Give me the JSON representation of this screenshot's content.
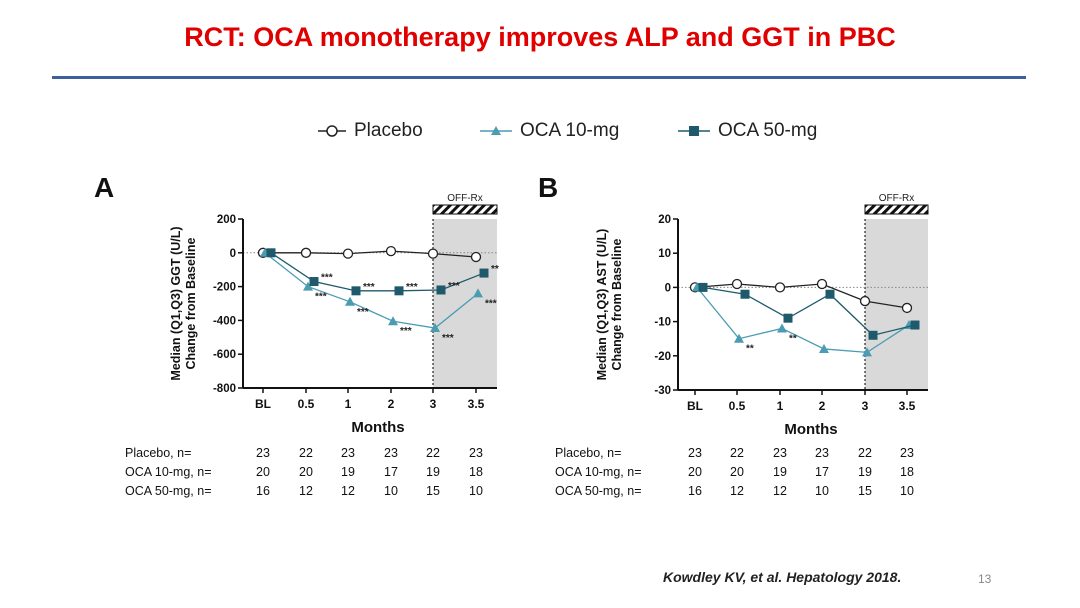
{
  "slide": {
    "title": "RCT: OCA monotherapy improves ALP and GGT in PBC",
    "citation": "Kowdley KV, et al. Hepatology 2018.",
    "page_number": "13"
  },
  "colors": {
    "title": "#e00000",
    "rule": "#3f5f9c",
    "placebo": "#222222",
    "oca10": "#4a9cb2",
    "oca50": "#1e5a6c",
    "offrx_shade": "#d9d9d9"
  },
  "legend": [
    {
      "label": "Placebo",
      "marker": "open-circle",
      "color": "#222222"
    },
    {
      "label": "OCA 10-mg",
      "marker": "triangle",
      "color": "#4a9cb2"
    },
    {
      "label": "OCA 50-mg",
      "marker": "square",
      "color": "#1e5a6c"
    }
  ],
  "chart_data": [
    {
      "type": "line",
      "panel": "A",
      "ylabel_line1": "Median (Q1,Q3) GGT (U/L)",
      "ylabel_line2": "Change from Baseline",
      "xlabel": "Months",
      "categories": [
        "BL",
        "0.5",
        "1",
        "2",
        "3",
        "3.5"
      ],
      "ylim": [
        -800,
        200
      ],
      "yticks": [
        200,
        0,
        -200,
        -400,
        -600,
        -800
      ],
      "shaded_label": "OFF-Rx",
      "shaded_from_category": "3",
      "series": [
        {
          "name": "Placebo",
          "values": [
            0,
            0,
            -5,
            10,
            -5,
            -25
          ]
        },
        {
          "name": "OCA 10-mg",
          "values": [
            0,
            -200,
            -290,
            -405,
            -445,
            -240
          ]
        },
        {
          "name": "OCA 50-mg",
          "values": [
            0,
            -170,
            -225,
            -225,
            -220,
            -120
          ]
        }
      ],
      "annotations": [
        {
          "series": 2,
          "index": 1,
          "text": "***"
        },
        {
          "series": 1,
          "index": 1,
          "text": "***"
        },
        {
          "series": 2,
          "index": 2,
          "text": "***"
        },
        {
          "series": 1,
          "index": 2,
          "text": "***"
        },
        {
          "series": 2,
          "index": 3,
          "text": "***"
        },
        {
          "series": 1,
          "index": 3,
          "text": "***"
        },
        {
          "series": 2,
          "index": 4,
          "text": "***"
        },
        {
          "series": 1,
          "index": 4,
          "text": "***"
        },
        {
          "series": 2,
          "index": 5,
          "text": "**"
        },
        {
          "series": 1,
          "index": 5,
          "text": "***"
        }
      ],
      "n_table": [
        {
          "label": "Placebo, n=",
          "values": [
            "23",
            "22",
            "23",
            "23",
            "22",
            "23"
          ]
        },
        {
          "label": "OCA 10-mg, n=",
          "values": [
            "20",
            "20",
            "19",
            "17",
            "19",
            "18"
          ]
        },
        {
          "label": "OCA 50-mg, n=",
          "values": [
            "16",
            "12",
            "12",
            "10",
            "15",
            "10"
          ]
        }
      ]
    },
    {
      "type": "line",
      "panel": "B",
      "ylabel_line1": "Median (Q1,Q3) AST (U/L)",
      "ylabel_line2": "Change from Baseline",
      "xlabel": "Months",
      "categories": [
        "BL",
        "0.5",
        "1",
        "2",
        "3",
        "3.5"
      ],
      "ylim": [
        -30,
        20
      ],
      "yticks": [
        20,
        10,
        0,
        -10,
        -20,
        -30
      ],
      "shaded_label": "OFF-Rx",
      "shaded_from_category": "3",
      "series": [
        {
          "name": "Placebo",
          "values": [
            0,
            1,
            0,
            1,
            -4,
            -6
          ]
        },
        {
          "name": "OCA 10-mg",
          "values": [
            0,
            -15,
            -12,
            -18,
            -19,
            -11
          ]
        },
        {
          "name": "OCA 50-mg",
          "values": [
            0,
            -2,
            -9,
            -2,
            -14,
            -11
          ]
        }
      ],
      "annotations": [
        {
          "series": 1,
          "index": 1,
          "text": "**"
        },
        {
          "series": 1,
          "index": 2,
          "text": "**"
        }
      ],
      "n_table": [
        {
          "label": "Placebo, n=",
          "values": [
            "23",
            "22",
            "23",
            "23",
            "22",
            "23"
          ]
        },
        {
          "label": "OCA 10-mg, n=",
          "values": [
            "20",
            "20",
            "19",
            "17",
            "19",
            "18"
          ]
        },
        {
          "label": "OCA 50-mg, n=",
          "values": [
            "16",
            "12",
            "12",
            "10",
            "15",
            "10"
          ]
        }
      ]
    }
  ]
}
